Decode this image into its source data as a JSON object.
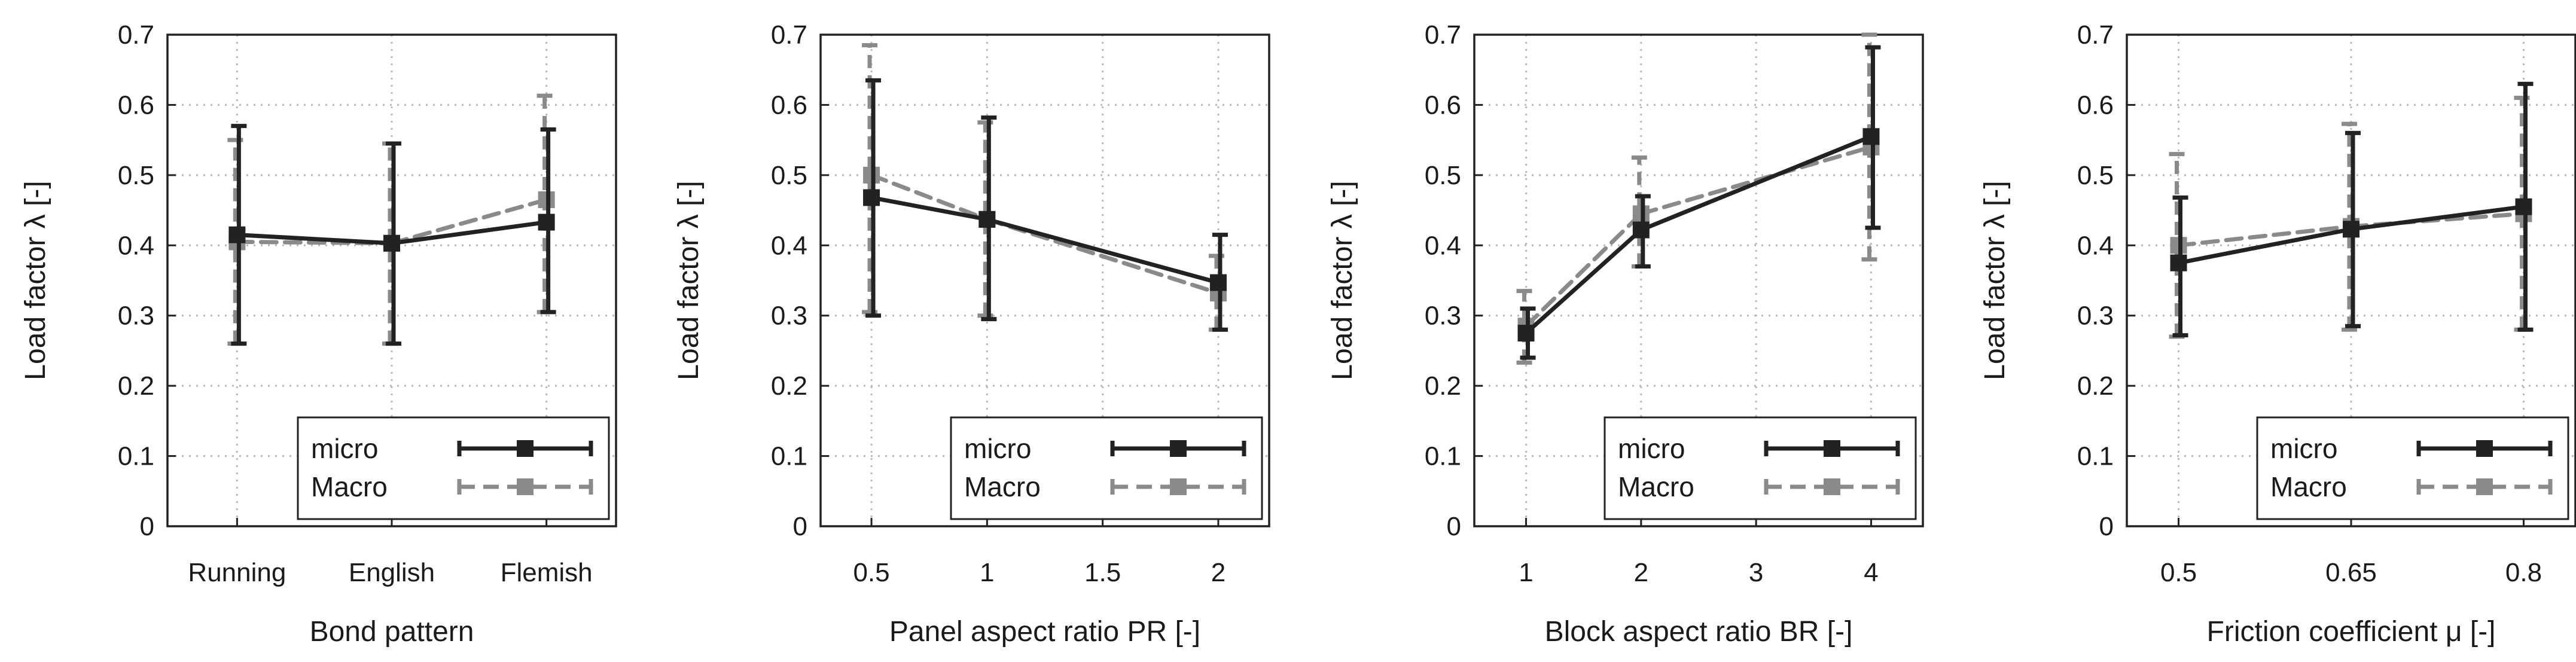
{
  "chart_data": [
    {
      "type": "line",
      "xlabel": "Bond pattern",
      "ylabel": "Load factor λ [-]",
      "x_kind": "categorical",
      "categories": [
        "Running",
        "English",
        "Flemish"
      ],
      "x": [
        0,
        1,
        2
      ],
      "xlim": [
        -0.45,
        2.45
      ],
      "ylim": [
        0,
        0.7
      ],
      "yticks": [
        0,
        0.1,
        0.2,
        0.3,
        0.4,
        0.5,
        0.6,
        0.7
      ],
      "grid": true,
      "legend_position": "bottom-right",
      "series": [
        {
          "name": "micro",
          "style": "solid",
          "color": "#222222",
          "values": [
            0.415,
            0.403,
            0.433
          ],
          "error_low": [
            0.26,
            0.26,
            0.305
          ],
          "error_high": [
            0.57,
            0.545,
            0.565
          ]
        },
        {
          "name": "Macro",
          "style": "dashed",
          "color": "#8a8a8a",
          "values": [
            0.405,
            0.403,
            0.465
          ],
          "error_low": [
            0.26,
            0.26,
            0.305
          ],
          "error_high": [
            0.55,
            0.545,
            0.613
          ]
        }
      ]
    },
    {
      "type": "line",
      "xlabel": "Panel aspect ratio PR [-]",
      "ylabel": "Load factor λ [-]",
      "x_kind": "numeric",
      "x": [
        0.5,
        1,
        2
      ],
      "xticks": [
        0.5,
        1,
        1.5,
        2
      ],
      "xtick_labels": [
        "0.5",
        "1",
        "1.5",
        "2"
      ],
      "xlim": [
        0.28,
        2.22
      ],
      "ylim": [
        0,
        0.7
      ],
      "yticks": [
        0,
        0.1,
        0.2,
        0.3,
        0.4,
        0.5,
        0.6,
        0.7
      ],
      "grid": true,
      "legend_position": "bottom-right",
      "series": [
        {
          "name": "micro",
          "style": "solid",
          "color": "#222222",
          "values": [
            0.468,
            0.437,
            0.347
          ],
          "error_low": [
            0.3,
            0.295,
            0.28
          ],
          "error_high": [
            0.635,
            0.582,
            0.415
          ]
        },
        {
          "name": "Macro",
          "style": "dashed",
          "color": "#8a8a8a",
          "values": [
            0.5,
            0.437,
            0.332
          ],
          "error_low": [
            0.305,
            0.3,
            0.28
          ],
          "error_high": [
            0.685,
            0.575,
            0.385
          ]
        }
      ]
    },
    {
      "type": "line",
      "xlabel": "Block aspect ratio BR [-]",
      "ylabel": "Load factor λ [-]",
      "x_kind": "numeric",
      "x": [
        1,
        2,
        4
      ],
      "xticks": [
        1,
        2,
        3,
        4
      ],
      "xtick_labels": [
        "1",
        "2",
        "3",
        "4"
      ],
      "xlim": [
        0.55,
        4.45
      ],
      "ylim": [
        0,
        0.7
      ],
      "yticks": [
        0,
        0.1,
        0.2,
        0.3,
        0.4,
        0.5,
        0.6,
        0.7
      ],
      "grid": true,
      "legend_position": "bottom-right",
      "series": [
        {
          "name": "micro",
          "style": "solid",
          "color": "#222222",
          "values": [
            0.275,
            0.422,
            0.555
          ],
          "error_low": [
            0.24,
            0.37,
            0.425
          ],
          "error_high": [
            0.31,
            0.47,
            0.682
          ]
        },
        {
          "name": "Macro",
          "style": "dashed",
          "color": "#8a8a8a",
          "values": [
            0.285,
            0.445,
            0.54
          ],
          "error_low": [
            0.233,
            0.37,
            0.38
          ],
          "error_high": [
            0.335,
            0.525,
            0.7
          ]
        }
      ]
    },
    {
      "type": "line",
      "xlabel": "Friction coefficient μ [-]",
      "ylabel": "Load factor λ [-]",
      "x_kind": "numeric",
      "x": [
        0.5,
        0.65,
        0.8
      ],
      "xticks": [
        0.5,
        0.65,
        0.8
      ],
      "xtick_labels": [
        "0.5",
        "0.65",
        "0.8"
      ],
      "xlim": [
        0.455,
        0.845
      ],
      "ylim": [
        0,
        0.7
      ],
      "yticks": [
        0,
        0.1,
        0.2,
        0.3,
        0.4,
        0.5,
        0.6,
        0.7
      ],
      "grid": true,
      "legend_position": "bottom-right",
      "series": [
        {
          "name": "micro",
          "style": "solid",
          "color": "#222222",
          "values": [
            0.375,
            0.423,
            0.455
          ],
          "error_low": [
            0.272,
            0.285,
            0.28
          ],
          "error_high": [
            0.468,
            0.56,
            0.63
          ]
        },
        {
          "name": "Macro",
          "style": "dashed",
          "color": "#8a8a8a",
          "values": [
            0.4,
            0.427,
            0.445
          ],
          "error_low": [
            0.27,
            0.28,
            0.28
          ],
          "error_high": [
            0.53,
            0.573,
            0.61
          ]
        }
      ]
    }
  ]
}
